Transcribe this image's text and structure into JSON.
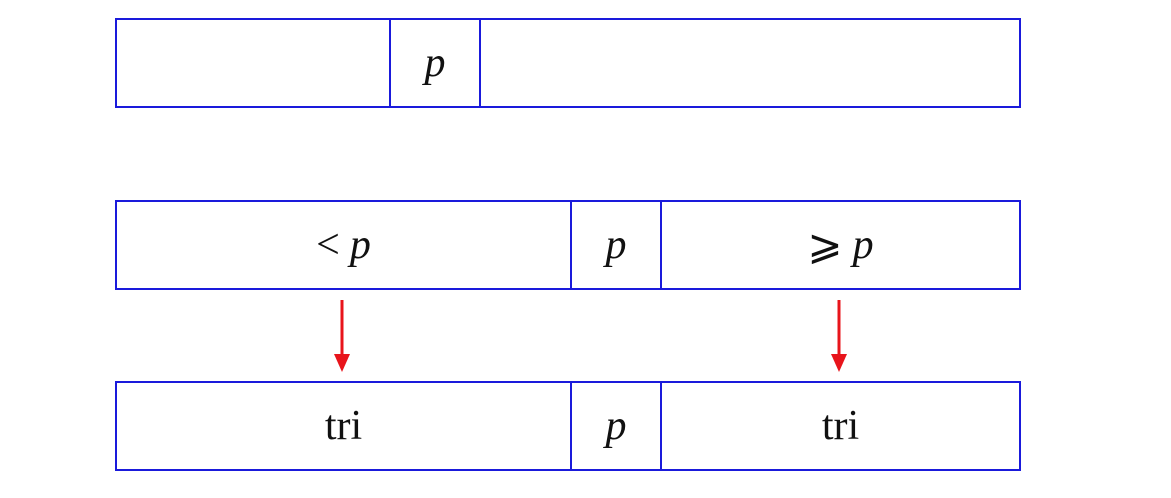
{
  "colors": {
    "border": "#1a1adb",
    "arrow": "#e8141b",
    "text": "#111111"
  },
  "row1": {
    "cells": [
      "",
      "p",
      ""
    ]
  },
  "row2": {
    "left_relation": "<",
    "left_symbol": "p",
    "middle": "p",
    "right_relation": "⩾",
    "right_symbol": "p"
  },
  "row3": {
    "left": "tri",
    "middle": "p",
    "right": "tri"
  }
}
